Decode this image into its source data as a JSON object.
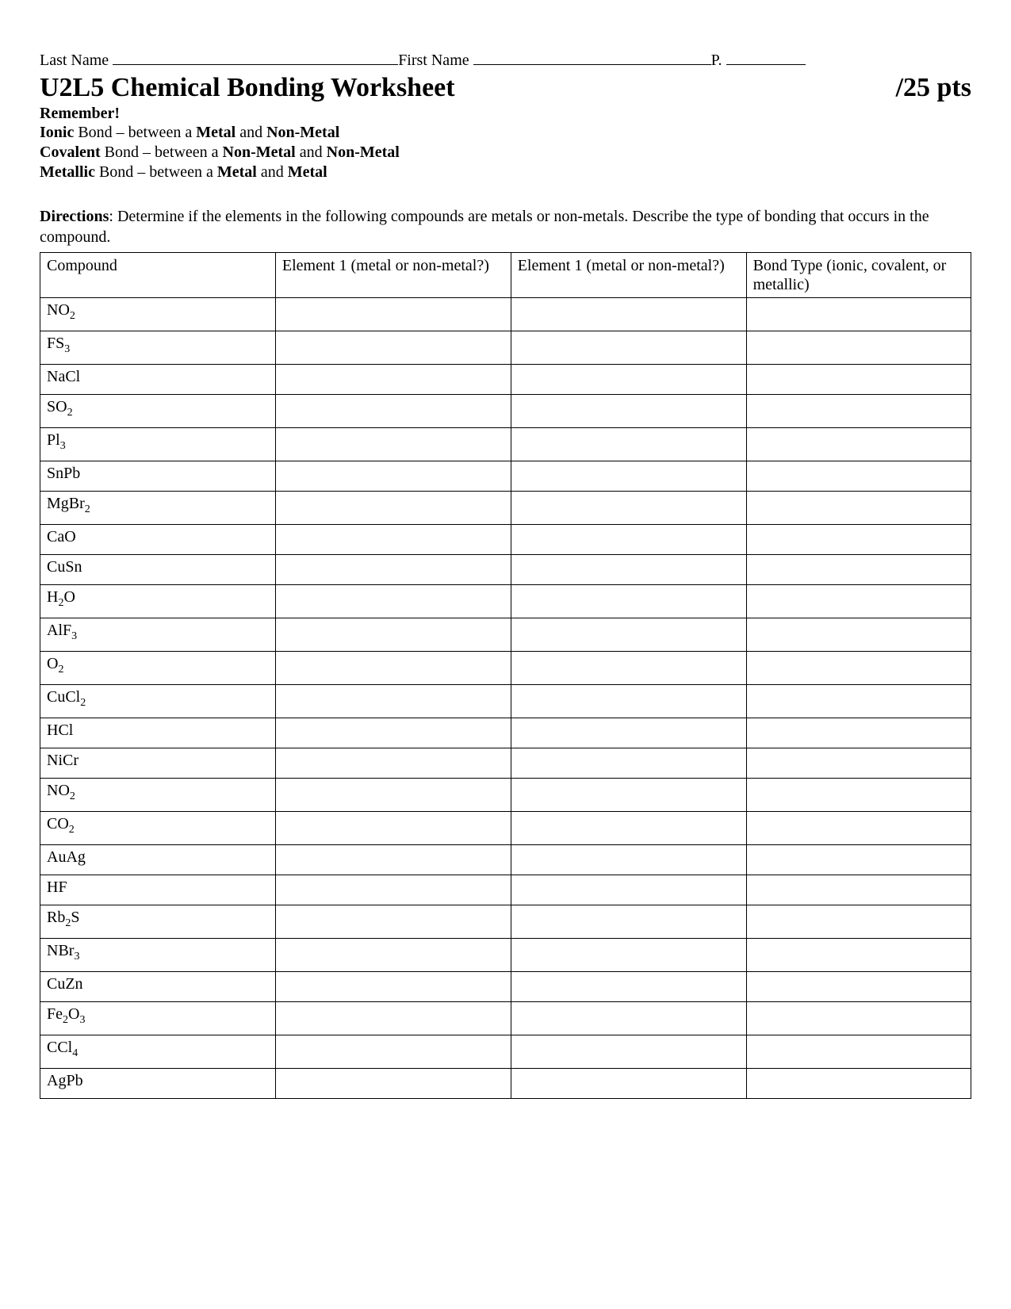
{
  "header": {
    "last_name_label": "Last Name",
    "first_name_label": "First Name",
    "period_label": "P.",
    "title": "U2L5 Chemical Bonding Worksheet",
    "points": "/25 pts",
    "remember": "Remember!",
    "bond_lines": [
      {
        "bold1": "Ionic",
        "mid1": " Bond – between a ",
        "bold2": "Metal",
        "mid2": " and ",
        "bold3": "Non-Metal"
      },
      {
        "bold1": "Covalent",
        "mid1": " Bond – between a ",
        "bold2": "Non-Metal",
        "mid2": " and ",
        "bold3": "Non-Metal"
      },
      {
        "bold1": "Metallic",
        "mid1": " Bond – between a ",
        "bold2": "Metal",
        "mid2": " and ",
        "bold3": "Metal"
      }
    ],
    "directions_label": "Directions",
    "directions_text": ": Determine if the elements in the following compounds are metals or non-metals.  Describe the type of bonding that occurs in the compound."
  },
  "table": {
    "columns": [
      "Compound",
      "Element 1 (metal or non-metal?)",
      "Element 1 (metal or non-metal?)",
      "Bond Type (ionic, covalent, or metallic)"
    ],
    "column_widths": [
      "220px",
      "220px",
      "220px",
      "210px"
    ],
    "border_color": "#000000",
    "background_color": "#ffffff",
    "fontsize": 20,
    "rows": [
      {
        "compound": [
          {
            "t": "NO"
          },
          {
            "sub": "2"
          }
        ]
      },
      {
        "compound": [
          {
            "t": "FS"
          },
          {
            "sub": "3"
          }
        ]
      },
      {
        "compound": [
          {
            "t": "NaCl"
          }
        ]
      },
      {
        "compound": [
          {
            "t": "SO"
          },
          {
            "sub": "2"
          }
        ]
      },
      {
        "compound": [
          {
            "t": "Pl"
          },
          {
            "sub": "3"
          }
        ]
      },
      {
        "compound": [
          {
            "t": "SnPb"
          }
        ]
      },
      {
        "compound": [
          {
            "t": "MgBr"
          },
          {
            "sub": "2"
          }
        ]
      },
      {
        "compound": [
          {
            "t": "CaO"
          }
        ]
      },
      {
        "compound": [
          {
            "t": "CuSn"
          }
        ]
      },
      {
        "compound": [
          {
            "t": "H"
          },
          {
            "sub": "2"
          },
          {
            "t": "O"
          }
        ]
      },
      {
        "compound": [
          {
            "t": "AlF"
          },
          {
            "sub": "3"
          }
        ]
      },
      {
        "compound": [
          {
            "t": "O"
          },
          {
            "sub": "2"
          }
        ]
      },
      {
        "compound": [
          {
            "t": "CuCl"
          },
          {
            "sub": "2"
          }
        ]
      },
      {
        "compound": [
          {
            "t": "HCl"
          }
        ]
      },
      {
        "compound": [
          {
            "t": "NiCr"
          }
        ]
      },
      {
        "compound": [
          {
            "t": "NO"
          },
          {
            "sub": "2"
          }
        ]
      },
      {
        "compound": [
          {
            "t": "CO"
          },
          {
            "sub": "2"
          }
        ]
      },
      {
        "compound": [
          {
            "t": "AuAg"
          }
        ]
      },
      {
        "compound": [
          {
            "t": "HF"
          }
        ]
      },
      {
        "compound": [
          {
            "t": "Rb"
          },
          {
            "sub": "2"
          },
          {
            "t": "S"
          }
        ]
      },
      {
        "compound": [
          {
            "t": "NBr"
          },
          {
            "sub": "3"
          }
        ]
      },
      {
        "compound": [
          {
            "t": "CuZn"
          }
        ]
      },
      {
        "compound": [
          {
            "t": "Fe"
          },
          {
            "sub": "2"
          },
          {
            "t": "O"
          },
          {
            "sub": "3"
          }
        ]
      },
      {
        "compound": [
          {
            "t": "CCl"
          },
          {
            "sub": "4"
          }
        ]
      },
      {
        "compound": [
          {
            "t": "AgPb"
          }
        ]
      }
    ]
  }
}
